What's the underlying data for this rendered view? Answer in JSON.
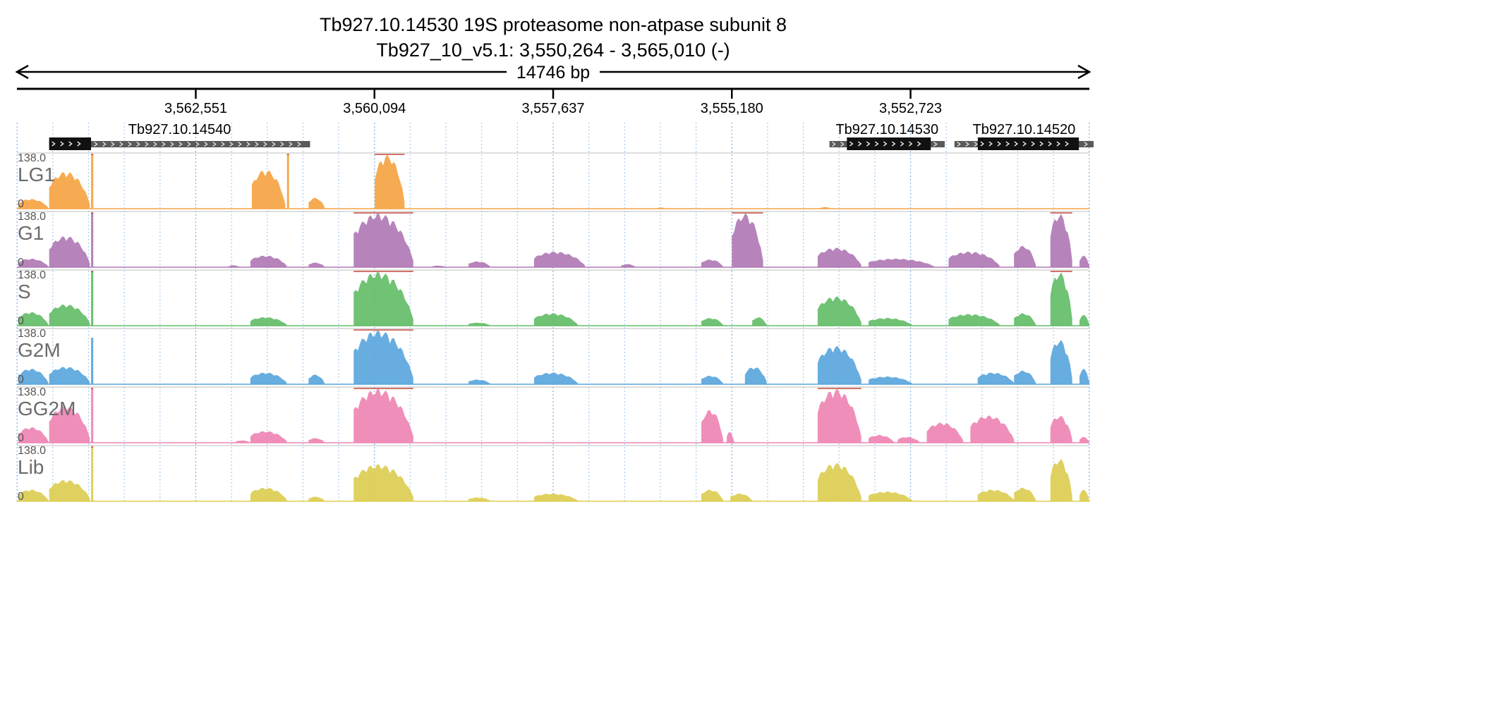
{
  "header": {
    "title_line1": "Tb927.10.14530  19S proteasome non-atpase subunit 8",
    "title_line2": "Tb927_10_v5.1: 3,550,264 - 3,565,010 (-)",
    "span_label": "14746 bp"
  },
  "chart_data": {
    "type": "area",
    "title": "Tb927.10.14530  19S proteasome non-atpase subunit 8",
    "subtitle": "Tb927_10_v5.1: 3,550,264 - 3,565,010 (-)",
    "xlabel": "14746 bp",
    "chromosome": "Tb927_10_v5.1",
    "region_start": 3550264,
    "region_end": 3565010,
    "strand": "-",
    "x_reversed": true,
    "ticks": [
      {
        "pos": 3562551,
        "label": "3,562,551"
      },
      {
        "pos": 3560094,
        "label": "3,560,094"
      },
      {
        "pos": 3557637,
        "label": "3,557,637"
      },
      {
        "pos": 3555180,
        "label": "3,555,180"
      },
      {
        "pos": 3552723,
        "label": "3,552,723"
      }
    ],
    "genes": [
      {
        "name": "Tb927.10.14540",
        "utr_start": 3560979,
        "utr_end": 3564567,
        "cds_start": 3563991,
        "cds_end": 3564567
      },
      {
        "name": "Tb927.10.14530",
        "utr_start": 3552253,
        "utr_end": 3553838,
        "cds_start": 3552445,
        "cds_end": 3553598
      },
      {
        "name": "Tb927.10.14520",
        "utr_start": 3550206,
        "utr_end": 3552119,
        "cds_start": 3550408,
        "cds_end": 3551798
      }
    ],
    "ylim": [
      0,
      138.0
    ],
    "ymax_label": "138.0",
    "ymin_label": "0",
    "series": [
      {
        "name": "LG1",
        "color": "#f5a443",
        "peaks": [
          [
            3564990,
            3564580,
            25
          ],
          [
            3564567,
            3564008,
            95
          ],
          [
            3563991,
            3563960,
            138
          ],
          [
            3561780,
            3561320,
            100
          ],
          [
            3561297,
            3561268,
            138
          ],
          [
            3561000,
            3560780,
            28
          ],
          [
            3560090,
            3559680,
            138
          ],
          [
            3556200,
            3556080,
            3
          ],
          [
            3553960,
            3553810,
            4
          ]
        ]
      },
      {
        "name": "G1",
        "color": "#b07ab5",
        "peaks": [
          [
            3564990,
            3564580,
            22
          ],
          [
            3564567,
            3564008,
            80
          ],
          [
            3563991,
            3563960,
            138
          ],
          [
            3562100,
            3561950,
            5
          ],
          [
            3561800,
            3561300,
            30
          ],
          [
            3561000,
            3560780,
            12
          ],
          [
            3560380,
            3559560,
            138
          ],
          [
            3559300,
            3559100,
            4
          ],
          [
            3558800,
            3558500,
            15
          ],
          [
            3557900,
            3557200,
            40
          ],
          [
            3556700,
            3556500,
            8
          ],
          [
            3555600,
            3555300,
            20
          ],
          [
            3555180,
            3554750,
            138
          ],
          [
            3554000,
            3553400,
            50
          ],
          [
            3553300,
            3552400,
            22
          ],
          [
            3552200,
            3551500,
            40
          ],
          [
            3551300,
            3551000,
            55
          ],
          [
            3550800,
            3550500,
            138
          ],
          [
            3550400,
            3550264,
            30
          ]
        ]
      },
      {
        "name": "S",
        "color": "#64bd68",
        "peaks": [
          [
            3564990,
            3564580,
            35
          ],
          [
            3564567,
            3564008,
            55
          ],
          [
            3563991,
            3563960,
            138
          ],
          [
            3561800,
            3561300,
            22
          ],
          [
            3560380,
            3559560,
            138
          ],
          [
            3558800,
            3558500,
            8
          ],
          [
            3557900,
            3557300,
            32
          ],
          [
            3555600,
            3555300,
            20
          ],
          [
            3554900,
            3554700,
            22
          ],
          [
            3554000,
            3553400,
            75
          ],
          [
            3553300,
            3552700,
            20
          ],
          [
            3552200,
            3551500,
            30
          ],
          [
            3551300,
            3551000,
            32
          ],
          [
            3550800,
            3550500,
            138
          ],
          [
            3550400,
            3550264,
            28
          ]
        ]
      },
      {
        "name": "G2M",
        "color": "#5aa6dc",
        "peaks": [
          [
            3564990,
            3564580,
            40
          ],
          [
            3564567,
            3564008,
            45
          ],
          [
            3563991,
            3563960,
            118
          ],
          [
            3561800,
            3561300,
            30
          ],
          [
            3561000,
            3560780,
            25
          ],
          [
            3560380,
            3559560,
            138
          ],
          [
            3558800,
            3558500,
            12
          ],
          [
            3557900,
            3557300,
            30
          ],
          [
            3555600,
            3555300,
            22
          ],
          [
            3555000,
            3554700,
            45
          ],
          [
            3554000,
            3553400,
            98
          ],
          [
            3553300,
            3552700,
            20
          ],
          [
            3551800,
            3551300,
            30
          ],
          [
            3551300,
            3551000,
            35
          ],
          [
            3550800,
            3550500,
            115
          ],
          [
            3550400,
            3550264,
            40
          ]
        ]
      },
      {
        "name": "GG2M",
        "color": "#ef84b4",
        "peaks": [
          [
            3564990,
            3564580,
            40
          ],
          [
            3564567,
            3564008,
            95
          ],
          [
            3563991,
            3563960,
            138
          ],
          [
            3562000,
            3561800,
            6
          ],
          [
            3561800,
            3561300,
            30
          ],
          [
            3561000,
            3560780,
            12
          ],
          [
            3560380,
            3559560,
            138
          ],
          [
            3555600,
            3555300,
            85
          ],
          [
            3555250,
            3555150,
            28
          ],
          [
            3554000,
            3553400,
            138
          ],
          [
            3553300,
            3552950,
            20
          ],
          [
            3552900,
            3552600,
            15
          ],
          [
            3552500,
            3552000,
            52
          ],
          [
            3551900,
            3551300,
            70
          ],
          [
            3550800,
            3550500,
            70
          ],
          [
            3550400,
            3550264,
            15
          ]
        ]
      },
      {
        "name": "Lib",
        "color": "#dccd51",
        "peaks": [
          [
            3564990,
            3564580,
            30
          ],
          [
            3564567,
            3564008,
            55
          ],
          [
            3563991,
            3563960,
            138
          ],
          [
            3561800,
            3561300,
            35
          ],
          [
            3561000,
            3560780,
            12
          ],
          [
            3560380,
            3559560,
            95
          ],
          [
            3558800,
            3558500,
            10
          ],
          [
            3557900,
            3557300,
            20
          ],
          [
            3555600,
            3555300,
            30
          ],
          [
            3555200,
            3554900,
            20
          ],
          [
            3554000,
            3553400,
            98
          ],
          [
            3553300,
            3552700,
            25
          ],
          [
            3551800,
            3551300,
            30
          ],
          [
            3551300,
            3551000,
            35
          ],
          [
            3550800,
            3550500,
            110
          ],
          [
            3550400,
            3550264,
            30
          ]
        ]
      }
    ]
  }
}
